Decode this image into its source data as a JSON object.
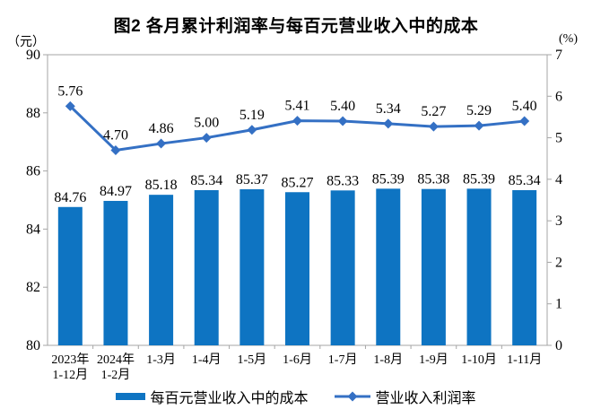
{
  "chart_data": {
    "type": "combo",
    "title": "图2 各月累计利润率与每百元营业收入中的成本",
    "categories": [
      "2023年\n1-12月",
      "2024年\n1-2月",
      "1-3月",
      "1-4月",
      "1-5月",
      "1-6月",
      "1-7月",
      "1-8月",
      "1-9月",
      "1-10月",
      "1-11月"
    ],
    "series": [
      {
        "name": "每百元营业收入中的成本",
        "type": "bar",
        "axis": "left",
        "color": "#0E74C2",
        "values": [
          84.76,
          84.97,
          85.18,
          85.34,
          85.37,
          85.27,
          85.33,
          85.39,
          85.38,
          85.39,
          85.34
        ]
      },
      {
        "name": "营业收入利润率",
        "type": "line",
        "axis": "right",
        "color": "#3470C4",
        "values": [
          5.76,
          4.7,
          4.86,
          5.0,
          5.19,
          5.41,
          5.4,
          5.34,
          5.27,
          5.29,
          5.4
        ]
      }
    ],
    "left_axis": {
      "unit": "（元）",
      "min": 80,
      "max": 90,
      "ticks": [
        80,
        82,
        84,
        86,
        88,
        90
      ]
    },
    "right_axis": {
      "unit": "(%)",
      "min": 0,
      "max": 7,
      "ticks": [
        0,
        1,
        2,
        3,
        4,
        5,
        6,
        7
      ]
    },
    "grid": false,
    "legend_position": "bottom",
    "axis_color": "#A6A6A6",
    "label_color": "#000000"
  }
}
